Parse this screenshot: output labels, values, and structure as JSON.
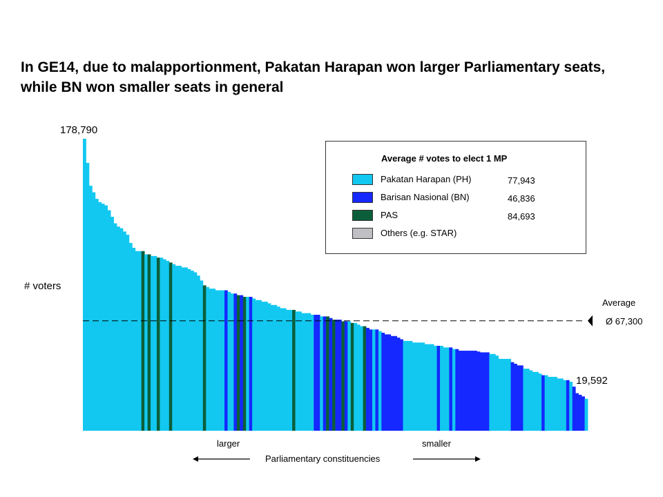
{
  "title": "In GE14, due to malapportionment, Pakatan Harapan won larger Parliamentary seats, while BN won smaller seats in general",
  "labels": {
    "y_axis": "# voters",
    "max_value": "178,790",
    "min_value": "19,592",
    "average_label": "Average",
    "average_value": "Ø 67,300",
    "x_axis": "Parliamentary constituencies",
    "larger": "larger",
    "smaller": "smaller"
  },
  "legend": {
    "title": "Average # votes to elect 1 MP",
    "items": [
      {
        "name": "Pakatan Harapan (PH)",
        "value": "77,943",
        "color": "#12c8f0"
      },
      {
        "name": "Barisan Nasional (BN)",
        "value": "46,836",
        "color": "#1428ff"
      },
      {
        "name": "PAS",
        "value": "84,693",
        "color": "#0b5e3a"
      },
      {
        "name": "Others (e.g. STAR)",
        "value": "",
        "color": "#bfbfc4"
      }
    ]
  },
  "colors": {
    "PH": "#12c8f0",
    "BN": "#1428ff",
    "PAS": "#0b5e3a",
    "OTH": "#bfbfc4"
  },
  "chart_data": {
    "type": "bar",
    "title": "In GE14, due to malapportionment, Pakatan Harapan won larger Parliamentary seats, while BN won smaller seats in general",
    "xlabel": "Parliamentary constituencies",
    "ylabel": "# voters",
    "ylim": [
      0,
      178790
    ],
    "average": 67300,
    "sorted": "descending",
    "series": [
      {
        "name": "Pakatan Harapan (PH)",
        "avg_votes": 77943
      },
      {
        "name": "Barisan Nasional (BN)",
        "avg_votes": 46836
      },
      {
        "name": "PAS",
        "avg_votes": 84693
      },
      {
        "name": "Others (e.g. STAR)"
      }
    ],
    "bars": [
      [
        "PH",
        178790
      ],
      [
        "PH",
        164000
      ],
      [
        "PH",
        150000
      ],
      [
        "PH",
        146000
      ],
      [
        "PH",
        142000
      ],
      [
        "PH",
        140000
      ],
      [
        "PH",
        139000
      ],
      [
        "PH",
        138000
      ],
      [
        "PH",
        135000
      ],
      [
        "PH",
        131000
      ],
      [
        "PH",
        127000
      ],
      [
        "PH",
        125000
      ],
      [
        "PH",
        124000
      ],
      [
        "PH",
        122000
      ],
      [
        "PH",
        120000
      ],
      [
        "PH",
        115000
      ],
      [
        "PH",
        112000
      ],
      [
        "PH",
        110000
      ],
      [
        "PH",
        110000
      ],
      [
        "PAS",
        110000
      ],
      [
        "PH",
        108000
      ],
      [
        "PAS",
        108000
      ],
      [
        "PH",
        107000
      ],
      [
        "PH",
        107000
      ],
      [
        "PAS",
        106000
      ],
      [
        "PH",
        106000
      ],
      [
        "PH",
        105000
      ],
      [
        "PH",
        104000
      ],
      [
        "PAS",
        103000
      ],
      [
        "PH",
        102000
      ],
      [
        "PH",
        101000
      ],
      [
        "PH",
        101000
      ],
      [
        "PH",
        100000
      ],
      [
        "PH",
        100000
      ],
      [
        "PH",
        99000
      ],
      [
        "PH",
        98000
      ],
      [
        "PH",
        97000
      ],
      [
        "PH",
        95000
      ],
      [
        "PH",
        92000
      ],
      [
        "PAS",
        89000
      ],
      [
        "PH",
        88000
      ],
      [
        "PH",
        87000
      ],
      [
        "PH",
        87000
      ],
      [
        "PH",
        86000
      ],
      [
        "PH",
        86000
      ],
      [
        "PH",
        86000
      ],
      [
        "BN",
        86000
      ],
      [
        "PH",
        85000
      ],
      [
        "PH",
        84000
      ],
      [
        "BN",
        84000
      ],
      [
        "PAS",
        83000
      ],
      [
        "BN",
        83000
      ],
      [
        "PAS",
        82000
      ],
      [
        "PH",
        82000
      ],
      [
        "BN",
        82000
      ],
      [
        "PH",
        81000
      ],
      [
        "PH",
        80000
      ],
      [
        "PH",
        80000
      ],
      [
        "PH",
        79000
      ],
      [
        "PH",
        79000
      ],
      [
        "PH",
        78000
      ],
      [
        "PH",
        77000
      ],
      [
        "PH",
        77000
      ],
      [
        "PH",
        76000
      ],
      [
        "PH",
        75000
      ],
      [
        "PH",
        75000
      ],
      [
        "PH",
        74000
      ],
      [
        "PH",
        74000
      ],
      [
        "PAS",
        74000
      ],
      [
        "PH",
        73000
      ],
      [
        "PH",
        73000
      ],
      [
        "PH",
        72000
      ],
      [
        "PH",
        72000
      ],
      [
        "PH",
        72000
      ],
      [
        "PH",
        71000
      ],
      [
        "BN",
        71000
      ],
      [
        "BN",
        71000
      ],
      [
        "PH",
        70000
      ],
      [
        "BN",
        70000
      ],
      [
        "PAS",
        70000
      ],
      [
        "BN",
        69000
      ],
      [
        "PAS",
        68000
      ],
      [
        "BN",
        68000
      ],
      [
        "BN",
        68000
      ],
      [
        "PAS",
        67000
      ],
      [
        "BN",
        67000
      ],
      [
        "PH",
        67000
      ],
      [
        "PAS",
        66000
      ],
      [
        "PH",
        66000
      ],
      [
        "PH",
        65000
      ],
      [
        "PH",
        64000
      ],
      [
        "PAS",
        64000
      ],
      [
        "BN",
        63000
      ],
      [
        "BN",
        62000
      ],
      [
        "PH",
        62000
      ],
      [
        "BN",
        62000
      ],
      [
        "PH",
        61000
      ],
      [
        "BN",
        60000
      ],
      [
        "BN",
        59000
      ],
      [
        "BN",
        59000
      ],
      [
        "BN",
        58000
      ],
      [
        "BN",
        58000
      ],
      [
        "BN",
        57000
      ],
      [
        "BN",
        56000
      ],
      [
        "PH",
        55000
      ],
      [
        "PH",
        55000
      ],
      [
        "PH",
        55000
      ],
      [
        "PH",
        54000
      ],
      [
        "PH",
        54000
      ],
      [
        "PH",
        54000
      ],
      [
        "PH",
        54000
      ],
      [
        "PH",
        53000
      ],
      [
        "PH",
        53000
      ],
      [
        "PH",
        53000
      ],
      [
        "PH",
        52000
      ],
      [
        "BN",
        52000
      ],
      [
        "PH",
        52000
      ],
      [
        "PH",
        51000
      ],
      [
        "PH",
        51000
      ],
      [
        "BN",
        51000
      ],
      [
        "PH",
        50000
      ],
      [
        "BN",
        50000
      ],
      [
        "BN",
        49000
      ],
      [
        "BN",
        49000
      ],
      [
        "BN",
        49000
      ],
      [
        "BN",
        49000
      ],
      [
        "BN",
        49000
      ],
      [
        "BN",
        49000
      ],
      [
        "BN",
        48500
      ],
      [
        "BN",
        48000
      ],
      [
        "BN",
        48000
      ],
      [
        "BN",
        48000
      ],
      [
        "PH",
        47000
      ],
      [
        "PH",
        47000
      ],
      [
        "PH",
        46000
      ],
      [
        "PH",
        44000
      ],
      [
        "PH",
        44000
      ],
      [
        "PH",
        44000
      ],
      [
        "PH",
        44000
      ],
      [
        "BN",
        42000
      ],
      [
        "BN",
        41000
      ],
      [
        "BN",
        40000
      ],
      [
        "BN",
        40000
      ],
      [
        "PH",
        38000
      ],
      [
        "PH",
        38000
      ],
      [
        "PH",
        37000
      ],
      [
        "PH",
        36000
      ],
      [
        "PH",
        36000
      ],
      [
        "PH",
        35000
      ],
      [
        "BN",
        34000
      ],
      [
        "PH",
        34000
      ],
      [
        "PH",
        33000
      ],
      [
        "PH",
        33000
      ],
      [
        "PH",
        33000
      ],
      [
        "PH",
        32000
      ],
      [
        "PH",
        32000
      ],
      [
        "PH",
        31000
      ],
      [
        "BN",
        31000
      ],
      [
        "PH",
        30000
      ],
      [
        "BN",
        27000
      ],
      [
        "BN",
        23000
      ],
      [
        "BN",
        22000
      ],
      [
        "BN",
        21000
      ],
      [
        "PH",
        19592
      ]
    ]
  }
}
